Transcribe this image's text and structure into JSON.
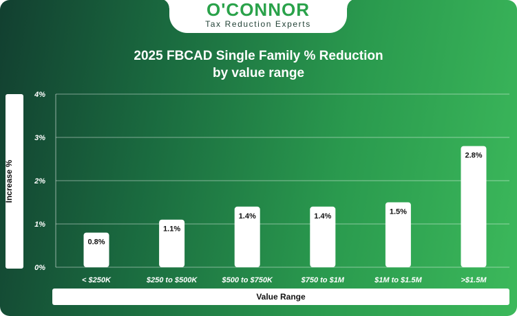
{
  "brand": {
    "name": "O'CONNOR",
    "tagline": "Tax Reduction Experts"
  },
  "chart_data": {
    "type": "bar",
    "title_line1": "2025 FBCAD Single Family % Reduction",
    "title_line2": "by value range",
    "xlabel": "Value Range",
    "ylabel": "Increase %",
    "categories": [
      "< $250K",
      "$250 to $500K",
      "$500 to $750K",
      "$750 to $1M",
      "$1M to $1.5M",
      ">$1.5M"
    ],
    "values": [
      0.8,
      1.1,
      1.4,
      1.4,
      1.5,
      2.8
    ],
    "value_labels": [
      "0.8%",
      "1.1%",
      "1.4%",
      "1.4%",
      "1.5%",
      "2.8%"
    ],
    "yticks": [
      "0%",
      "1%",
      "2%",
      "3%",
      "4%"
    ],
    "ylim": [
      0,
      4
    ],
    "grid": true,
    "colors": {
      "bar": "#ffffff",
      "text": "#ffffff",
      "grid": "#ffffff"
    }
  }
}
